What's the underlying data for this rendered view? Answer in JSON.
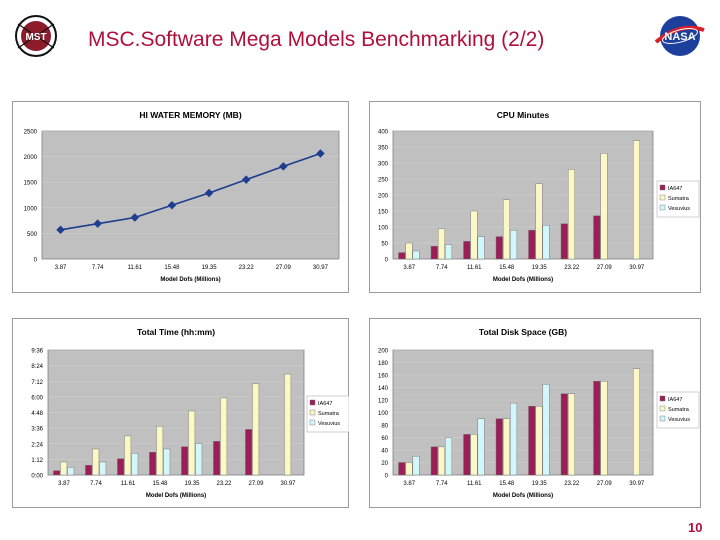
{
  "slide": {
    "title": "MSC.Software Mega Models Benchmarking (2/2)",
    "page_number": "10",
    "logo_left_text": "MST",
    "logo_right_text": "NASA"
  },
  "colors": {
    "title": "#b0103a",
    "series1": "#9b1f57",
    "series2": "#fbf7c6",
    "series3": "#d3f6fb",
    "plot_bg": "#c0c0c0",
    "line": "#1e3d8e"
  },
  "chart_data": [
    {
      "type": "line",
      "title": "HI WATER MEMORY (MB)",
      "xlabel": "Model Dofs (Millions)",
      "categories": [
        "3.87",
        "7.74",
        "11.61",
        "15.48",
        "19.35",
        "23.22",
        "27.09",
        "30.97"
      ],
      "series": [
        {
          "name": "Memory",
          "values": [
            570,
            690,
            810,
            1050,
            1290,
            1550,
            1810,
            2060
          ]
        }
      ],
      "ylim": [
        0,
        2500
      ],
      "yticks": [
        0,
        500,
        1000,
        1500,
        2000,
        2500
      ],
      "ytick_labels": [
        "0",
        "500",
        "1000",
        "1500",
        "2000",
        "2500"
      ],
      "legend": "none"
    },
    {
      "type": "bar",
      "title": "CPU Minutes",
      "xlabel": "Model Dofs (Millions)",
      "categories": [
        "3.87",
        "7.74",
        "11.61",
        "15.48",
        "19.35",
        "23.22",
        "27.09",
        "30.97"
      ],
      "series": [
        {
          "name": "IA647",
          "values": [
            20,
            40,
            55,
            70,
            90,
            110,
            135,
            null
          ]
        },
        {
          "name": "Sumatra",
          "values": [
            50,
            95,
            150,
            185,
            235,
            280,
            330,
            370
          ]
        },
        {
          "name": "Vesuvius",
          "values": [
            25,
            45,
            70,
            90,
            105,
            null,
            null,
            null
          ]
        }
      ],
      "ylim": [
        0,
        400
      ],
      "yticks": [
        0,
        50,
        100,
        150,
        200,
        250,
        300,
        350,
        400
      ],
      "ytick_labels": [
        "0",
        "50",
        "100",
        "150",
        "200",
        "250",
        "300",
        "350",
        "400"
      ],
      "legend": "right"
    },
    {
      "type": "bar",
      "title": "Total Time (hh:mm)",
      "xlabel": "Model Dofs (Millions)",
      "categories": [
        "3.87",
        "7.74",
        "11.61",
        "15.48",
        "19.35",
        "23.22",
        "27.09",
        "30.97"
      ],
      "series": [
        {
          "name": "IA647",
          "values": [
            20,
            45,
            75,
            105,
            130,
            155,
            210,
            null
          ]
        },
        {
          "name": "Sumatra",
          "values": [
            60,
            120,
            180,
            225,
            295,
            355,
            420,
            465
          ]
        },
        {
          "name": "Vesuvius",
          "values": [
            35,
            60,
            100,
            120,
            145,
            null,
            null,
            null
          ]
        }
      ],
      "ylim": [
        0,
        576
      ],
      "yticks": [
        0,
        72,
        144,
        216,
        288,
        360,
        432,
        504,
        576
      ],
      "ytick_labels": [
        "0:00",
        "1:12",
        "2:24",
        "3:36",
        "4:48",
        "6:00",
        "7:12",
        "8:24",
        "9:36"
      ],
      "legend": "right"
    },
    {
      "type": "bar",
      "title": "Total Disk Space (GB)",
      "xlabel": "Model Dofs (Millions)",
      "categories": [
        "3.87",
        "7.74",
        "11.61",
        "15.48",
        "19.35",
        "23.22",
        "27.09",
        "30.97"
      ],
      "series": [
        {
          "name": "IA647",
          "values": [
            20,
            45,
            65,
            90,
            110,
            130,
            150,
            null
          ]
        },
        {
          "name": "Sumatra",
          "values": [
            20,
            45,
            65,
            90,
            110,
            130,
            150,
            170
          ]
        },
        {
          "name": "Vesuvius",
          "values": [
            30,
            60,
            90,
            115,
            145,
            null,
            null,
            null
          ]
        }
      ],
      "ylim": [
        0,
        200
      ],
      "yticks": [
        0,
        20,
        40,
        60,
        80,
        100,
        120,
        140,
        160,
        180,
        200
      ],
      "ytick_labels": [
        "0",
        "20",
        "40",
        "60",
        "80",
        "100",
        "120",
        "140",
        "160",
        "180",
        "200"
      ],
      "legend": "right"
    }
  ]
}
